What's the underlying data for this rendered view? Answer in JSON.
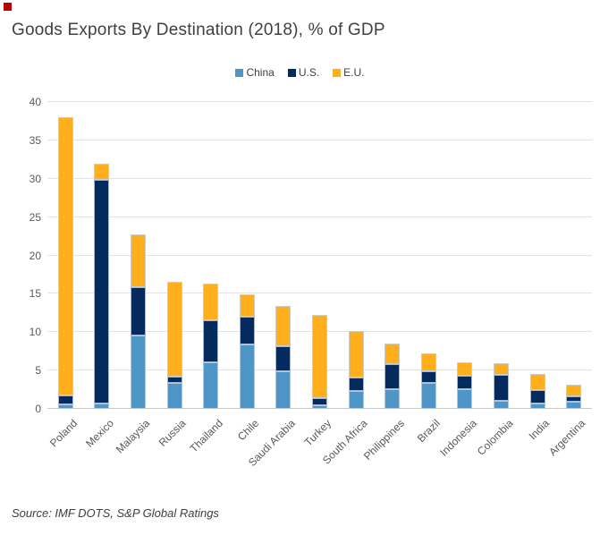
{
  "page": {
    "corner_mark_color": "#C00000"
  },
  "header": {
    "title": "Goods Exports By Destination (2018), % of GDP"
  },
  "footer": {
    "source": "Source: IMF DOTS, S&P Global Ratings"
  },
  "chart_data": {
    "type": "bar",
    "stacked": true,
    "title": "Goods Exports By Destination (2018), % of GDP",
    "categories": [
      "Poland",
      "Mexico",
      "Malaysia",
      "Russia",
      "Thailand",
      "Chile",
      "Saudi Arabia",
      "Turkey",
      "South Africa",
      "Philippines",
      "Brazil",
      "Indonesia",
      "Colombia",
      "India",
      "Argentina"
    ],
    "series": [
      {
        "name": "China",
        "color": "#4E96C8",
        "values": [
          0.6,
          0.7,
          9.6,
          3.4,
          6.1,
          8.4,
          4.9,
          0.5,
          2.3,
          2.6,
          3.4,
          2.6,
          1.1,
          0.7,
          0.9
        ]
      },
      {
        "name": "U.S.",
        "color": "#052A5E",
        "values": [
          1.1,
          29.2,
          6.3,
          0.8,
          5.4,
          3.6,
          3.3,
          0.9,
          1.8,
          3.2,
          1.5,
          1.7,
          3.3,
          1.7,
          0.7
        ]
      },
      {
        "name": "E.U.",
        "color": "#FFAE1C",
        "values": [
          36.3,
          2.1,
          6.8,
          12.4,
          4.8,
          2.9,
          5.2,
          10.8,
          6.0,
          2.7,
          2.3,
          1.8,
          1.6,
          2.2,
          1.6
        ]
      }
    ],
    "totals": [
      38.0,
      32.0,
      22.7,
      16.6,
      16.3,
      14.9,
      13.4,
      12.2,
      10.1,
      8.5,
      7.2,
      6.1,
      6.0,
      4.6,
      3.2
    ],
    "yticks": [
      0,
      5,
      10,
      15,
      20,
      25,
      30,
      35,
      40
    ],
    "ylim": [
      0,
      40
    ],
    "xlabel": "",
    "ylabel": "",
    "grid": true,
    "legend_position": "top-center",
    "colors": {
      "grid": "#E3E3E3",
      "axis_line": "#C9C9C9",
      "axis_text": "#595959",
      "legend_text": "#404040",
      "title_text": "#404040",
      "source_text": "#404040"
    }
  }
}
